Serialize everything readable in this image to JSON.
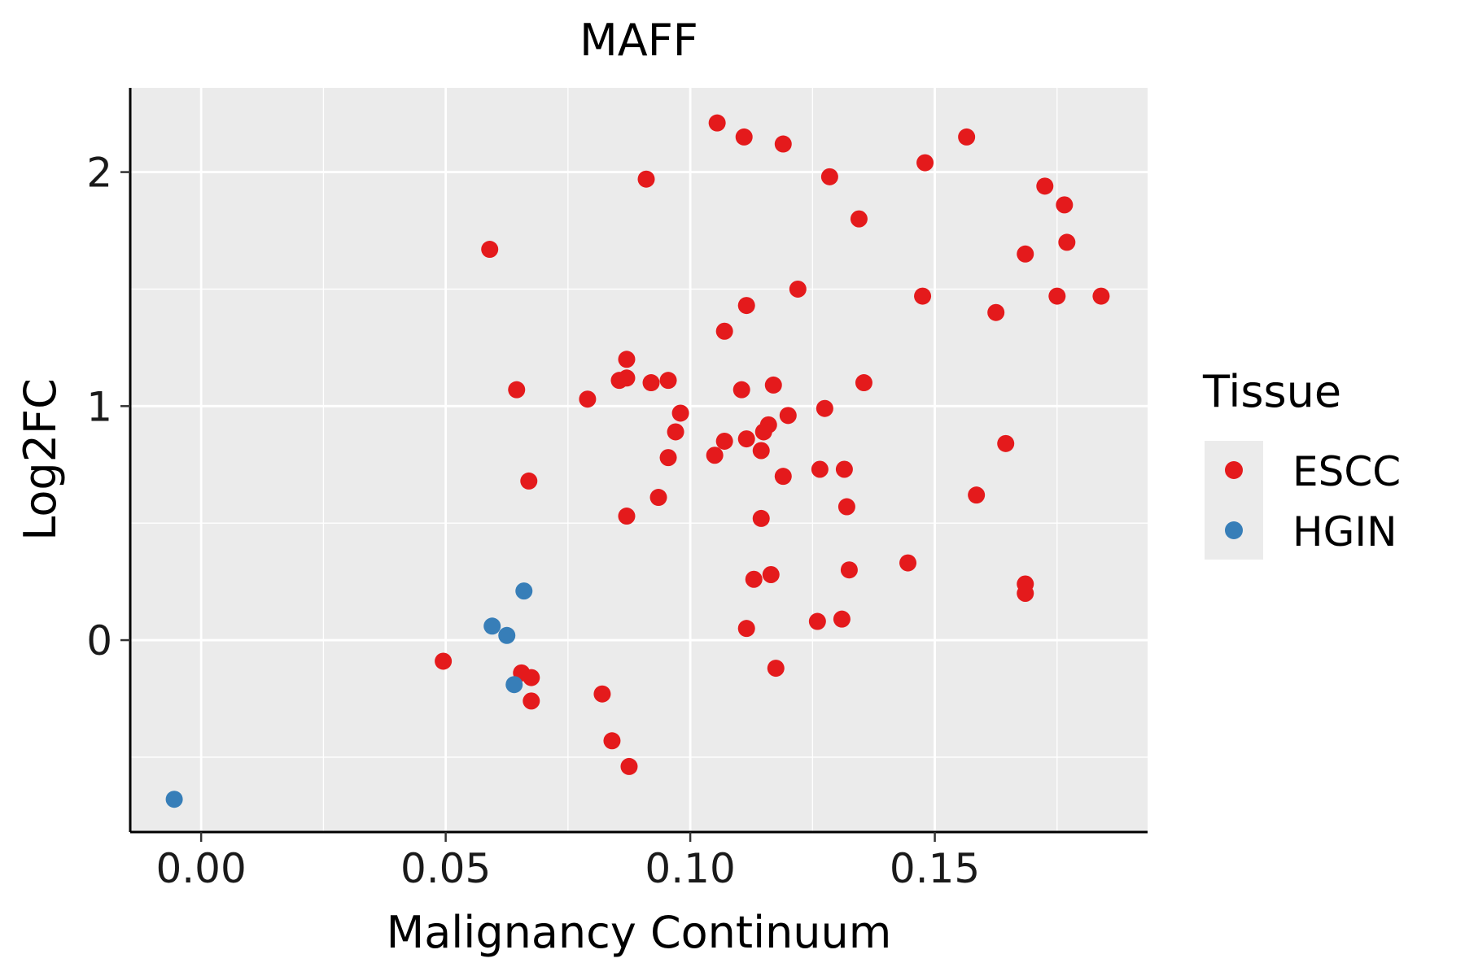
{
  "chart_data": {
    "type": "scatter",
    "title": "MAFF",
    "xlabel": "Malignancy Continuum",
    "ylabel": "Log2FC",
    "xlim": [
      -0.0145,
      0.1935
    ],
    "ylim": [
      -0.82,
      2.36
    ],
    "x_ticks": [
      0.0,
      0.05,
      0.1,
      0.15
    ],
    "x_tick_labels": [
      "0.00",
      "0.05",
      "0.10",
      "0.15"
    ],
    "y_ticks": [
      0,
      1,
      2
    ],
    "y_tick_labels": [
      "0",
      "1",
      "2"
    ],
    "grid": true,
    "legend": {
      "title": "Tissue",
      "position": "right",
      "entries": [
        {
          "label": "ESCC",
          "color": "#E41A1C"
        },
        {
          "label": "HGIN",
          "color": "#377EB8"
        }
      ]
    },
    "series": [
      {
        "name": "ESCC",
        "color": "#E41A1C",
        "points": [
          [
            0.1055,
            2.21
          ],
          [
            0.111,
            2.15
          ],
          [
            0.119,
            2.12
          ],
          [
            0.1565,
            2.15
          ],
          [
            0.091,
            1.97
          ],
          [
            0.1285,
            1.98
          ],
          [
            0.148,
            2.04
          ],
          [
            0.1725,
            1.94
          ],
          [
            0.1765,
            1.86
          ],
          [
            0.1345,
            1.8
          ],
          [
            0.059,
            1.67
          ],
          [
            0.1685,
            1.65
          ],
          [
            0.177,
            1.7
          ],
          [
            0.122,
            1.5
          ],
          [
            0.1475,
            1.47
          ],
          [
            0.175,
            1.47
          ],
          [
            0.184,
            1.47
          ],
          [
            0.1115,
            1.43
          ],
          [
            0.1625,
            1.4
          ],
          [
            0.107,
            1.32
          ],
          [
            0.087,
            1.2
          ],
          [
            0.0855,
            1.11
          ],
          [
            0.087,
            1.12
          ],
          [
            0.092,
            1.1
          ],
          [
            0.0955,
            1.11
          ],
          [
            0.0645,
            1.07
          ],
          [
            0.1105,
            1.07
          ],
          [
            0.117,
            1.09
          ],
          [
            0.1355,
            1.1
          ],
          [
            0.079,
            1.03
          ],
          [
            0.098,
            0.97
          ],
          [
            0.1275,
            0.99
          ],
          [
            0.12,
            0.96
          ],
          [
            0.116,
            0.92
          ],
          [
            0.115,
            0.89
          ],
          [
            0.097,
            0.89
          ],
          [
            0.107,
            0.85
          ],
          [
            0.1115,
            0.86
          ],
          [
            0.1645,
            0.84
          ],
          [
            0.1145,
            0.81
          ],
          [
            0.105,
            0.79
          ],
          [
            0.0955,
            0.78
          ],
          [
            0.1265,
            0.73
          ],
          [
            0.1315,
            0.73
          ],
          [
            0.119,
            0.7
          ],
          [
            0.067,
            0.68
          ],
          [
            0.1585,
            0.62
          ],
          [
            0.0935,
            0.61
          ],
          [
            0.132,
            0.57
          ],
          [
            0.087,
            0.53
          ],
          [
            0.1145,
            0.52
          ],
          [
            0.1445,
            0.33
          ],
          [
            0.1325,
            0.3
          ],
          [
            0.1165,
            0.28
          ],
          [
            0.113,
            0.26
          ],
          [
            0.1685,
            0.24
          ],
          [
            0.1685,
            0.2
          ],
          [
            0.131,
            0.09
          ],
          [
            0.126,
            0.08
          ],
          [
            0.1115,
            0.05
          ],
          [
            0.0495,
            -0.09
          ],
          [
            0.1175,
            -0.12
          ],
          [
            0.0655,
            -0.14
          ],
          [
            0.0675,
            -0.16
          ],
          [
            0.0675,
            -0.26
          ],
          [
            0.082,
            -0.23
          ],
          [
            0.084,
            -0.43
          ],
          [
            0.0875,
            -0.54
          ]
        ]
      },
      {
        "name": "HGIN",
        "color": "#377EB8",
        "points": [
          [
            0.066,
            0.21
          ],
          [
            0.0595,
            0.06
          ],
          [
            0.0625,
            0.02
          ],
          [
            0.064,
            -0.19
          ],
          [
            -0.0055,
            -0.68
          ]
        ]
      }
    ]
  },
  "style": {
    "panel_bg": "#EBEBEB",
    "grid_color": "#FFFFFF",
    "axis_color": "#000000"
  }
}
